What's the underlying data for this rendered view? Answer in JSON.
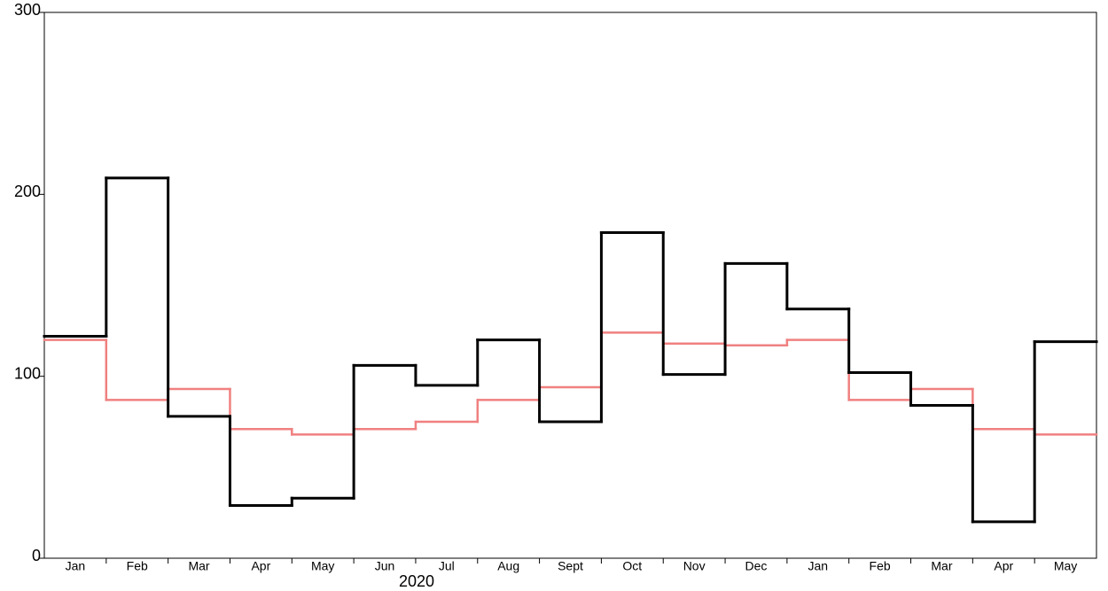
{
  "chart_data": {
    "type": "step",
    "categories": [
      "Jan",
      "Feb",
      "Mar",
      "Apr",
      "May",
      "Jun",
      "Jul",
      "Aug",
      "Sept",
      "Oct",
      "Nov",
      "Dec",
      "Jan",
      "Feb",
      "Mar",
      "Apr",
      "May"
    ],
    "x_group_label": "2020",
    "series": [
      {
        "color": "#f08080",
        "values": [
          120,
          87,
          93,
          71,
          68,
          71,
          75,
          87,
          94,
          124,
          118,
          117,
          120,
          87,
          93,
          71,
          68
        ]
      },
      {
        "color": "#000000",
        "values": [
          122,
          209,
          78,
          29,
          33,
          106,
          95,
          120,
          75,
          179,
          101,
          162,
          137,
          102,
          84,
          20,
          119
        ]
      }
    ],
    "ylim": [
      0,
      300
    ],
    "yticks": [
      0,
      100,
      200,
      300
    ]
  }
}
